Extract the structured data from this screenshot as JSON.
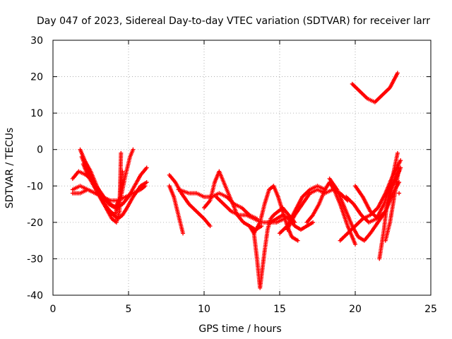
{
  "chart_data": {
    "type": "scatter",
    "title": "Day 047 of 2023, Sidereal Day-to-day VTEC variation (SDTVAR) for receiver larr",
    "xlabel": "GPS time / hours",
    "ylabel": "SDTVAR / TECUs",
    "xlim": [
      0,
      25
    ],
    "ylim": [
      -40,
      30
    ],
    "xticks": [
      0,
      5,
      10,
      15,
      20,
      25
    ],
    "yticks": [
      -40,
      -30,
      -20,
      -10,
      0,
      10,
      20,
      30
    ],
    "grid": true,
    "marker": "+",
    "color": "#ff0000",
    "series": [
      {
        "name": "s1",
        "x": [
          1.3,
          1.7,
          2.2,
          2.7,
          3.2,
          3.7,
          4.1,
          4.5,
          4.8,
          5.1,
          5.3
        ],
        "y": [
          -8,
          -6,
          -7,
          -9,
          -12,
          -15,
          -16,
          -13,
          -7,
          -2,
          0
        ]
      },
      {
        "name": "s2",
        "x": [
          1.3,
          1.8,
          2.3,
          2.8,
          3.3,
          3.8,
          4.2,
          4.6,
          5.0,
          5.4,
          5.8,
          6.2
        ],
        "y": [
          -11,
          -10,
          -11,
          -12,
          -13,
          -15,
          -16,
          -15,
          -13,
          -10,
          -7,
          -5
        ]
      },
      {
        "name": "s3",
        "x": [
          1.3,
          1.8,
          2.3,
          2.8,
          3.3,
          3.8,
          4.3,
          4.8,
          5.3,
          5.8,
          6.1
        ],
        "y": [
          -12,
          -12,
          -11,
          -12,
          -13,
          -14,
          -14,
          -13,
          -12,
          -11,
          -10
        ]
      },
      {
        "name": "s4",
        "x": [
          1.8,
          2.1,
          2.5,
          2.9,
          3.3,
          3.7,
          4.0,
          4.3,
          4.6,
          4.9,
          5.3,
          5.8,
          6.2
        ],
        "y": [
          0,
          -3,
          -6,
          -10,
          -14,
          -17,
          -18,
          -19,
          -18,
          -16,
          -13,
          -10,
          -9
        ]
      },
      {
        "name": "s5",
        "x": [
          1.9,
          2.2,
          2.6,
          3.0,
          3.4,
          3.8,
          4.1,
          4.4,
          4.6
        ],
        "y": [
          -2,
          -5,
          -8,
          -12,
          -15,
          -17,
          -18,
          -14,
          -6
        ]
      },
      {
        "name": "s6",
        "x": [
          2.0,
          2.3,
          2.7,
          3.1,
          3.5,
          3.9,
          4.2,
          4.4,
          4.5
        ],
        "y": [
          -4,
          -7,
          -10,
          -13,
          -16,
          -19,
          -20,
          -17,
          -1
        ]
      },
      {
        "name": "s7",
        "x": [
          7.7,
          8.0,
          8.3,
          8.6
        ],
        "y": [
          -10,
          -13,
          -18,
          -23
        ]
      },
      {
        "name": "s8",
        "x": [
          7.7,
          8.1,
          8.5,
          9.0,
          9.5,
          10.0,
          10.4
        ],
        "y": [
          -7,
          -9,
          -12,
          -15,
          -17,
          -19,
          -21
        ]
      },
      {
        "name": "s9",
        "x": [
          8.3,
          9.0,
          9.5,
          10.0,
          10.5,
          11.0,
          11.5,
          12.0,
          12.5,
          13.0,
          13.5
        ],
        "y": [
          -11,
          -12,
          -12,
          -13,
          -13,
          -12,
          -13,
          -15,
          -16,
          -18,
          -19
        ]
      },
      {
        "name": "s10",
        "x": [
          10.0,
          10.4,
          10.7,
          11.0,
          11.4,
          11.8,
          12.2,
          12.6,
          13.0,
          13.4,
          13.8
        ],
        "y": [
          -16,
          -14,
          -9,
          -6,
          -10,
          -14,
          -18,
          -20,
          -21,
          -22,
          -21
        ]
      },
      {
        "name": "s11",
        "x": [
          10.8,
          11.3,
          11.8,
          12.3,
          12.8,
          13.3,
          13.8,
          14.3,
          14.8,
          15.3
        ],
        "y": [
          -13,
          -15,
          -17,
          -18,
          -18,
          -19,
          -20,
          -20,
          -20,
          -19
        ]
      },
      {
        "name": "s12",
        "x": [
          13.0,
          13.3,
          13.5,
          13.7,
          14.0,
          14.2,
          14.4,
          14.6,
          14.9,
          15.2,
          15.6,
          16.0
        ],
        "y": [
          -21,
          -23,
          -30,
          -38,
          -28,
          -22,
          -19,
          -18,
          -17,
          -16,
          -18,
          -20
        ]
      },
      {
        "name": "s13",
        "x": [
          13.3,
          13.7,
          14.0,
          14.3,
          14.6,
          14.9,
          15.2,
          15.5,
          15.8,
          16.2
        ],
        "y": [
          -23,
          -20,
          -15,
          -11,
          -10,
          -13,
          -17,
          -21,
          -24,
          -25
        ]
      },
      {
        "name": "s14",
        "x": [
          14.4,
          14.8,
          15.2,
          15.6,
          16.0,
          16.4,
          16.8,
          17.2
        ],
        "y": [
          -20,
          -19,
          -18,
          -19,
          -21,
          -22,
          -21,
          -20
        ]
      },
      {
        "name": "s15",
        "x": [
          15.0,
          15.5,
          16.0,
          16.5,
          17.0,
          17.5,
          18.0
        ],
        "y": [
          -23,
          -21,
          -17,
          -13,
          -11,
          -10,
          -11
        ]
      },
      {
        "name": "s16",
        "x": [
          15.5,
          16.0,
          16.5,
          17.0,
          17.5,
          18.0,
          18.5,
          19.0,
          19.5
        ],
        "y": [
          -22,
          -18,
          -15,
          -12,
          -11,
          -12,
          -11,
          -12,
          -14
        ]
      },
      {
        "name": "s17",
        "x": [
          16.8,
          17.2,
          17.6,
          18.0,
          18.3,
          18.6,
          19.0,
          19.5,
          20.0
        ],
        "y": [
          -20,
          -18,
          -15,
          -11,
          -9,
          -11,
          -15,
          -21,
          -26
        ]
      },
      {
        "name": "s18",
        "x": [
          18.3,
          18.8,
          19.3,
          19.8,
          20.2,
          20.6,
          21.0,
          21.5,
          22.0,
          22.5,
          22.9
        ],
        "y": [
          -8,
          -11,
          -16,
          -21,
          -24,
          -25,
          -23,
          -20,
          -17,
          -12,
          -9
        ]
      },
      {
        "name": "s19",
        "x": [
          19.0,
          19.5,
          20.0,
          20.5,
          21.0,
          21.5,
          22.0,
          22.5,
          23.0
        ],
        "y": [
          -25,
          -23,
          -21,
          -19,
          -18,
          -16,
          -12,
          -7,
          -3
        ]
      },
      {
        "name": "s20",
        "x": [
          19.4,
          19.9,
          20.4,
          20.9,
          21.4,
          21.9,
          22.4,
          22.8
        ],
        "y": [
          -13,
          -15,
          -18,
          -20,
          -19,
          -15,
          -9,
          -1
        ]
      },
      {
        "name": "s21",
        "x": [
          20.0,
          20.5,
          21.0,
          21.5,
          22.0,
          22.5,
          23.0
        ],
        "y": [
          -10,
          -13,
          -17,
          -19,
          -17,
          -10,
          -5
        ]
      },
      {
        "name": "s22",
        "x": [
          21.6,
          21.9,
          22.1,
          22.3,
          22.5,
          22.7,
          22.9
        ],
        "y": [
          -30,
          -22,
          -15,
          -11,
          -9,
          -7,
          -6
        ]
      },
      {
        "name": "s23",
        "x": [
          22.0,
          22.3,
          22.5,
          22.7,
          22.9
        ],
        "y": [
          -25,
          -20,
          -15,
          -10,
          -5
        ]
      },
      {
        "name": "s24",
        "x": [
          19.8,
          20.3,
          20.8,
          21.3,
          21.8,
          22.3,
          22.8
        ],
        "y": [
          18,
          16,
          14,
          13,
          15,
          17,
          21
        ]
      },
      {
        "name": "s25",
        "x": [
          22.9
        ],
        "y": [
          -12
        ]
      }
    ]
  }
}
